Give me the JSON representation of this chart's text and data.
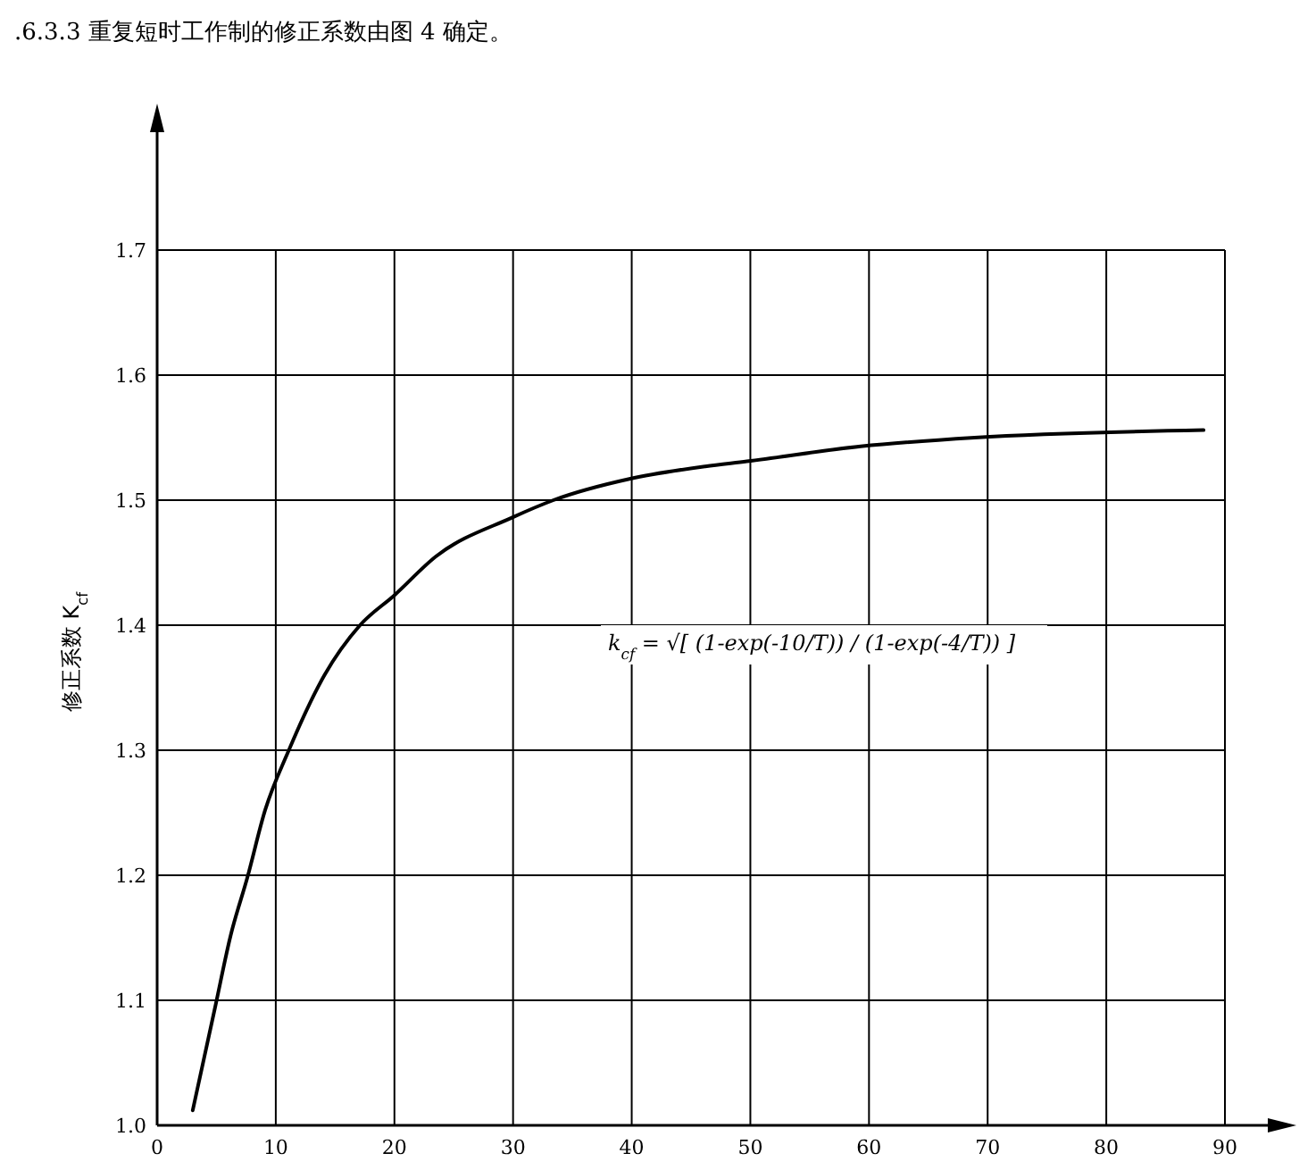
{
  "chart_data": {
    "type": "line",
    "title": ".6.3.3  重复短时工作制的修正系数由图 4 确定。",
    "ylabel": "修正系数 K$_{cf}$",
    "annotations": [
      "k$_{cf}$ = √[ (1-exp(-10/T)) / (1-exp(-4/T)) ]"
    ],
    "series": [
      {
        "color": "#000000",
        "x": [
          3.0,
          4.9,
          6.2,
          7.6,
          9.1,
          11.1,
          14.1,
          17.1,
          20.0,
          23.5,
          29.9,
          33.4,
          39.8,
          46.2,
          49.7,
          59.3,
          68.9,
          88.2
        ],
        "values": [
          1.012,
          1.095,
          1.152,
          1.198,
          1.252,
          1.3,
          1.36,
          1.4,
          1.424,
          1.455,
          1.486,
          1.5,
          1.517,
          1.527,
          1.531,
          1.543,
          1.55,
          1.556
        ]
      }
    ],
    "xlim": [
      0,
      90
    ],
    "ylim": [
      1.0,
      1.7
    ],
    "xticks": [
      0,
      10,
      20,
      30,
      40,
      50,
      60,
      70,
      80,
      90
    ],
    "yticks": [
      {
        "value": 1.0,
        "label": "1.0"
      },
      1.1,
      1.2,
      1.3,
      1.4,
      1.5,
      1.6,
      1.7
    ],
    "grid": true,
    "marker": "none",
    "line_style": "solid"
  }
}
